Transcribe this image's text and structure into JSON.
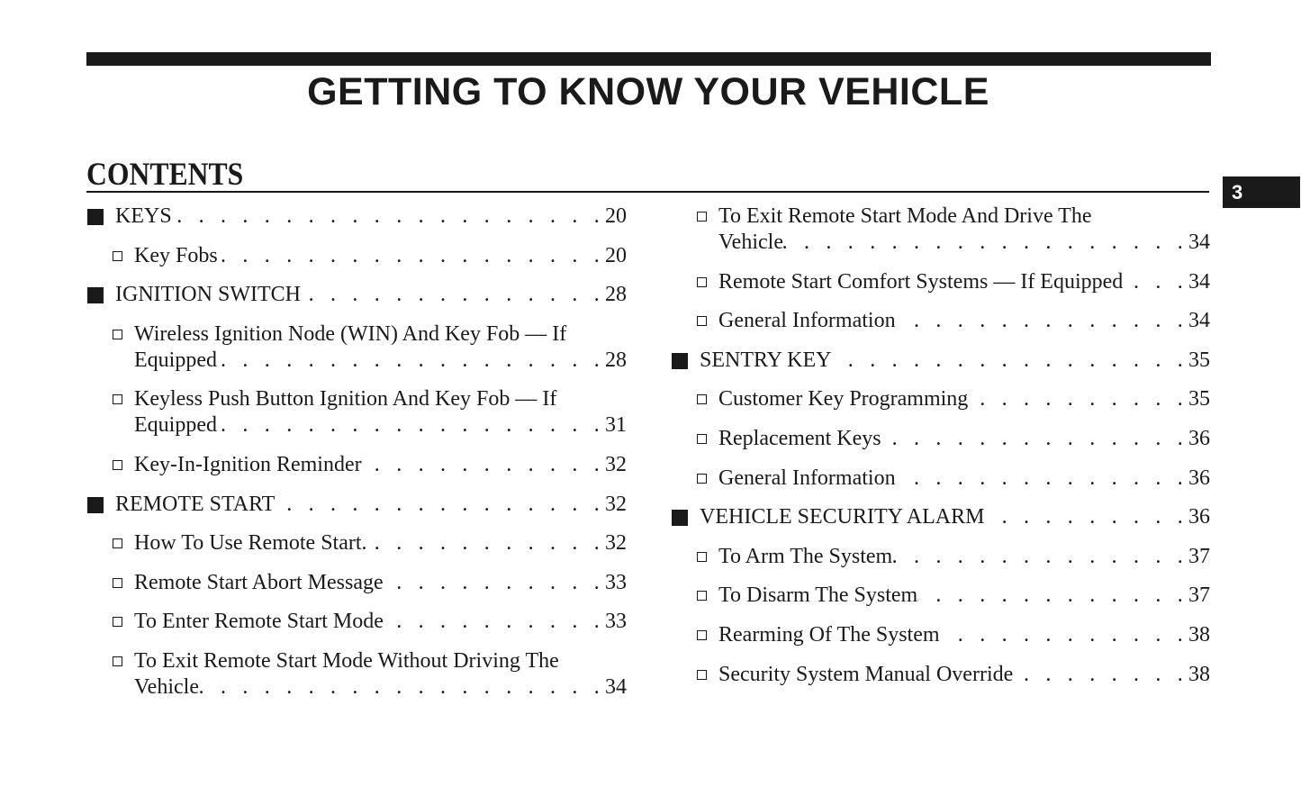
{
  "header": {
    "title": "GETTING TO KNOW YOUR VEHICLE",
    "section_tab": "3"
  },
  "contents_heading": "CONTENTS",
  "left": [
    {
      "level": "main",
      "lines": [
        "KEYS"
      ],
      "page": "20"
    },
    {
      "level": "sub",
      "lines": [
        "Key Fobs"
      ],
      "page": "20"
    },
    {
      "level": "main",
      "lines": [
        "IGNITION SWITCH"
      ],
      "page": "28"
    },
    {
      "level": "sub",
      "lines": [
        "Wireless Ignition Node (WIN) And Key Fob — If",
        "Equipped"
      ],
      "page": "28"
    },
    {
      "level": "sub",
      "lines": [
        "Keyless Push Button Ignition And Key Fob — If",
        "Equipped"
      ],
      "page": "31"
    },
    {
      "level": "sub",
      "lines": [
        "Key-In-Ignition Reminder"
      ],
      "page": "32"
    },
    {
      "level": "main",
      "lines": [
        "REMOTE START"
      ],
      "page": "32"
    },
    {
      "level": "sub",
      "lines": [
        "How To Use Remote Start."
      ],
      "page": "32"
    },
    {
      "level": "sub",
      "lines": [
        "Remote Start Abort Message"
      ],
      "page": "33"
    },
    {
      "level": "sub",
      "lines": [
        "To Enter Remote Start Mode"
      ],
      "page": "33"
    },
    {
      "level": "sub",
      "lines": [
        "To Exit Remote Start Mode Without Driving The",
        "Vehicle"
      ],
      "page": "34"
    }
  ],
  "right": [
    {
      "level": "sub",
      "lines": [
        "To Exit Remote Start Mode And Drive The",
        "Vehicle"
      ],
      "page": "34"
    },
    {
      "level": "sub",
      "lines": [
        "Remote Start Comfort Systems — If Equipped"
      ],
      "page": "34"
    },
    {
      "level": "sub",
      "lines": [
        "General Information"
      ],
      "page": "34"
    },
    {
      "level": "main",
      "lines": [
        "SENTRY KEY"
      ],
      "page": "35"
    },
    {
      "level": "sub",
      "lines": [
        "Customer Key Programming"
      ],
      "page": "35"
    },
    {
      "level": "sub",
      "lines": [
        "Replacement Keys"
      ],
      "page": "36"
    },
    {
      "level": "sub",
      "lines": [
        "General Information"
      ],
      "page": "36"
    },
    {
      "level": "main",
      "lines": [
        "VEHICLE SECURITY ALARM"
      ],
      "page": "36"
    },
    {
      "level": "sub",
      "lines": [
        "To Arm The System"
      ],
      "page": "37"
    },
    {
      "level": "sub",
      "lines": [
        "To Disarm The System"
      ],
      "page": "37"
    },
    {
      "level": "sub",
      "lines": [
        "Rearming Of The System"
      ],
      "page": "38"
    },
    {
      "level": "sub",
      "lines": [
        "Security System Manual Override"
      ],
      "page": "38"
    }
  ]
}
